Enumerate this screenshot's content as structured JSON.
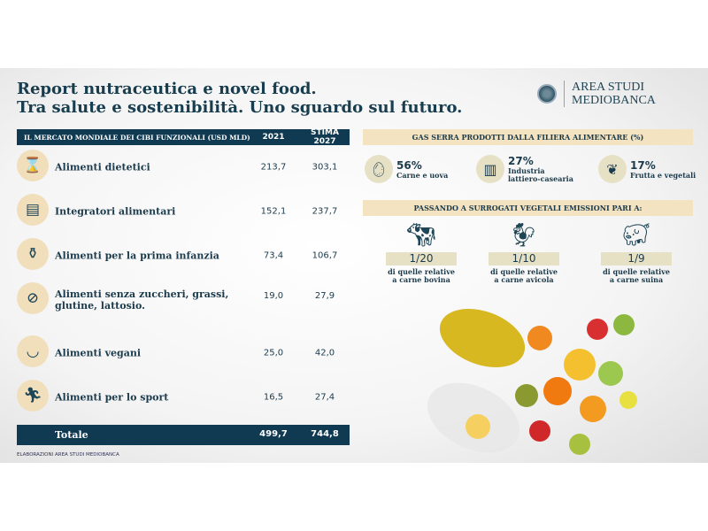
{
  "title": {
    "line1": "Report nutraceutica e novel food.",
    "line2": "Tra salute e sostenibilità. Uno sguardo sul futuro."
  },
  "logo": {
    "line1": "AREA STUDI",
    "line2": "MEDIOBANCA"
  },
  "table": {
    "header": {
      "label": "IL MERCATO MONDIALE DEI CIBI FUNZIONALI (USD MLD)",
      "col1": "2021",
      "col2": "STIMA 2027"
    },
    "rows": [
      {
        "label": "Alimenti dietetici",
        "v2021": "213,7",
        "v2027": "303,1",
        "icon": "waist-icon"
      },
      {
        "label": "Integratori alimentari",
        "v2021": "152,1",
        "v2027": "237,7",
        "icon": "supplement-jar-icon"
      },
      {
        "label": "Alimenti per la prima infanzia",
        "v2021": "73,4",
        "v2027": "106,7",
        "icon": "baby-bottle-icon"
      },
      {
        "label": "Alimenti senza zuccheri, grassi, glutine, lattosio.",
        "v2021": "19,0",
        "v2027": "27,9",
        "icon": "gluten-free-icon"
      },
      {
        "label": "Alimenti vegani",
        "v2021": "25,0",
        "v2027": "42,0",
        "icon": "salad-bowl-icon"
      },
      {
        "label": "Alimenti per lo sport",
        "v2021": "16,5",
        "v2027": "27,4",
        "icon": "runner-icon"
      }
    ],
    "total": {
      "label": "Totale",
      "v2021": "499,7",
      "v2027": "744,8"
    }
  },
  "footnote": "ELABORAZIONI AREA STUDI MEDIOBANCA",
  "gas": {
    "title": "GAS SERRA PRODOTTI DALLA FILIERA ALIMENTARE (%)",
    "items": [
      {
        "pct": "56%",
        "label": "Carne e uova",
        "icon": "egg-meat-icon"
      },
      {
        "pct": "27%",
        "label": "Industria lattiero-casearia",
        "icon": "milk-carton-icon"
      },
      {
        "pct": "17%",
        "label": "Frutta e vegetali",
        "icon": "fruit-vegetable-icon"
      }
    ]
  },
  "emissions": {
    "title": "PASSANDO A SURROGATI VEGETALI EMISSIONI PARI A:",
    "items": [
      {
        "ratio": "1/20",
        "label": "di quelle relative a carne bovina",
        "icon": "cow-icon"
      },
      {
        "ratio": "1/10",
        "label": "di quelle relative a carne avicola",
        "icon": "chicken-icon"
      },
      {
        "ratio": "1/9",
        "label": "di quelle relative a carne suina",
        "icon": "pig-icon"
      }
    ]
  },
  "colors": {
    "navy": "#0f3a52",
    "beige": "#f3e3c0",
    "sage": "#e6e1c5"
  }
}
